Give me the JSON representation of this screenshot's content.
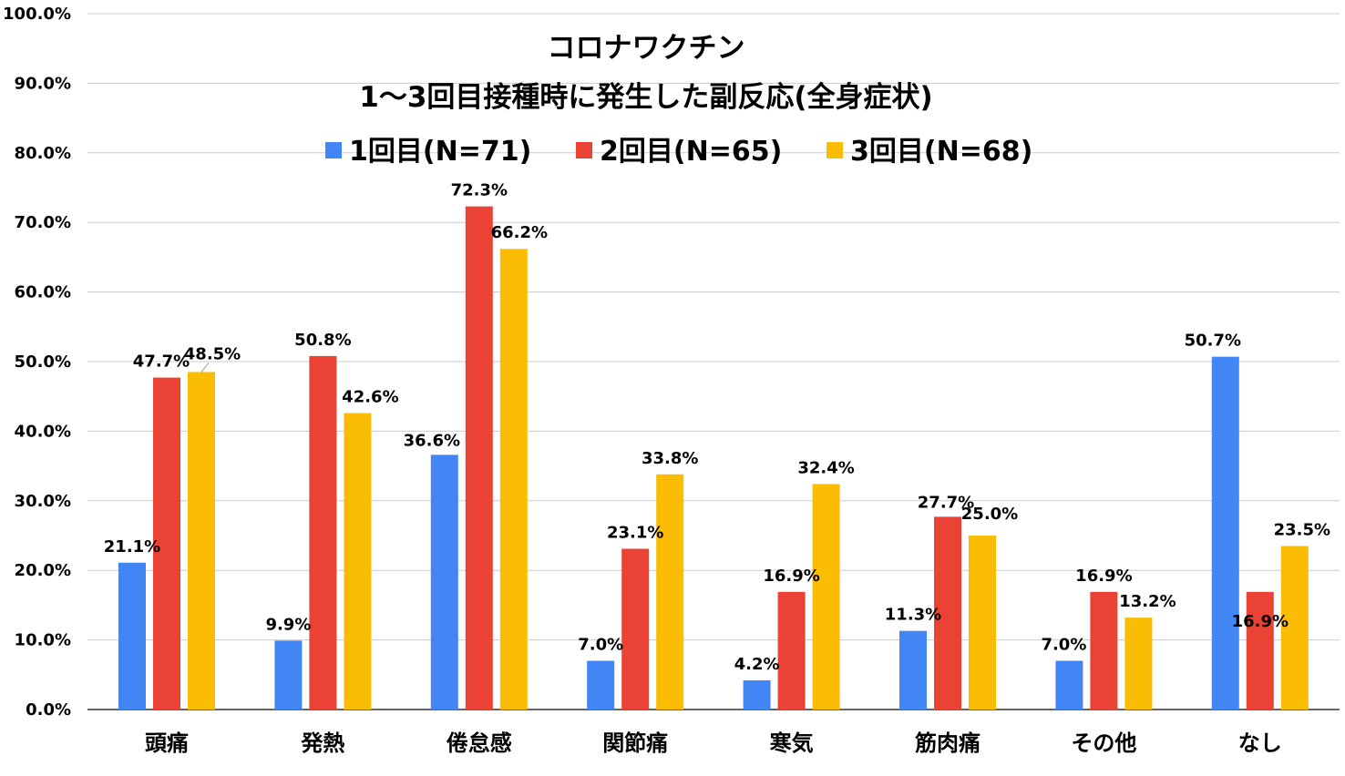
{
  "chart_data": {
    "type": "bar",
    "title_lines": [
      "コロナワクチン",
      "1〜3回目接種時に発生した副反応(全身症状)"
    ],
    "xlabel": "",
    "ylabel": "",
    "ylim": [
      0,
      100
    ],
    "ytick_values": [
      0,
      10,
      20,
      30,
      40,
      50,
      60,
      70,
      80,
      90,
      100
    ],
    "ytick_labels": [
      "0.0%",
      "10.0%",
      "20.0%",
      "30.0%",
      "40.0%",
      "50.0%",
      "60.0%",
      "70.0%",
      "80.0%",
      "90.0%",
      "100.0%"
    ],
    "grid": true,
    "legend_position": "top",
    "categories": [
      "頭痛",
      "発熱",
      "倦怠感",
      "関節痛",
      "寒気",
      "筋肉痛",
      "その他",
      "なし"
    ],
    "series": [
      {
        "name": "1回目(N=71)",
        "color": "#4285F4",
        "values": [
          21.1,
          9.9,
          36.6,
          7.0,
          4.2,
          11.3,
          7.0,
          50.7
        ],
        "labels": [
          "21.1%",
          "9.9%",
          "36.6%",
          "7.0%",
          "4.2%",
          "11.3%",
          "7.0%",
          "50.7%"
        ]
      },
      {
        "name": "2回目(N=65)",
        "color": "#EA4335",
        "values": [
          47.7,
          50.8,
          72.3,
          23.1,
          16.9,
          27.7,
          16.9,
          16.9
        ],
        "labels": [
          "47.7%",
          "50.8%",
          "72.3%",
          "23.1%",
          "16.9%",
          "27.7%",
          "16.9%",
          "16.9%"
        ]
      },
      {
        "name": "3回目(N=68)",
        "color": "#FBBC04",
        "values": [
          48.5,
          42.6,
          66.2,
          33.8,
          32.4,
          25.0,
          13.2,
          23.5
        ],
        "labels": [
          "48.5%",
          "42.6%",
          "66.2%",
          "33.8%",
          "32.4%",
          "25.0%",
          "13.2%",
          "23.5%"
        ]
      }
    ]
  }
}
